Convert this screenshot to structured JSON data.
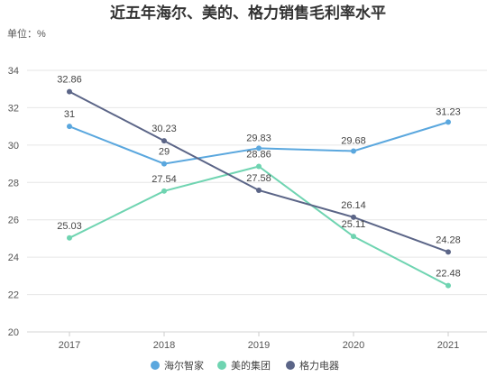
{
  "chart_data": {
    "type": "line",
    "title": "近五年海尔、美的、格力销售毛利率水平",
    "unit_label": "单位：%",
    "x": [
      "2017",
      "2018",
      "2019",
      "2020",
      "2021"
    ],
    "ylim": [
      20,
      34
    ],
    "yticks": [
      20,
      22,
      24,
      26,
      28,
      30,
      32,
      34
    ],
    "grid": true,
    "legend_position": "bottom",
    "series": [
      {
        "name": "海尔智家",
        "color": "#5aa7de",
        "values": [
          31,
          29,
          29.83,
          29.68,
          31.23
        ]
      },
      {
        "name": "美的集团",
        "color": "#6fd4b1",
        "values": [
          25.03,
          27.54,
          28.86,
          25.11,
          22.48
        ]
      },
      {
        "name": "格力电器",
        "color": "#5b6587",
        "values": [
          32.86,
          30.23,
          27.58,
          26.14,
          24.28
        ]
      }
    ]
  }
}
